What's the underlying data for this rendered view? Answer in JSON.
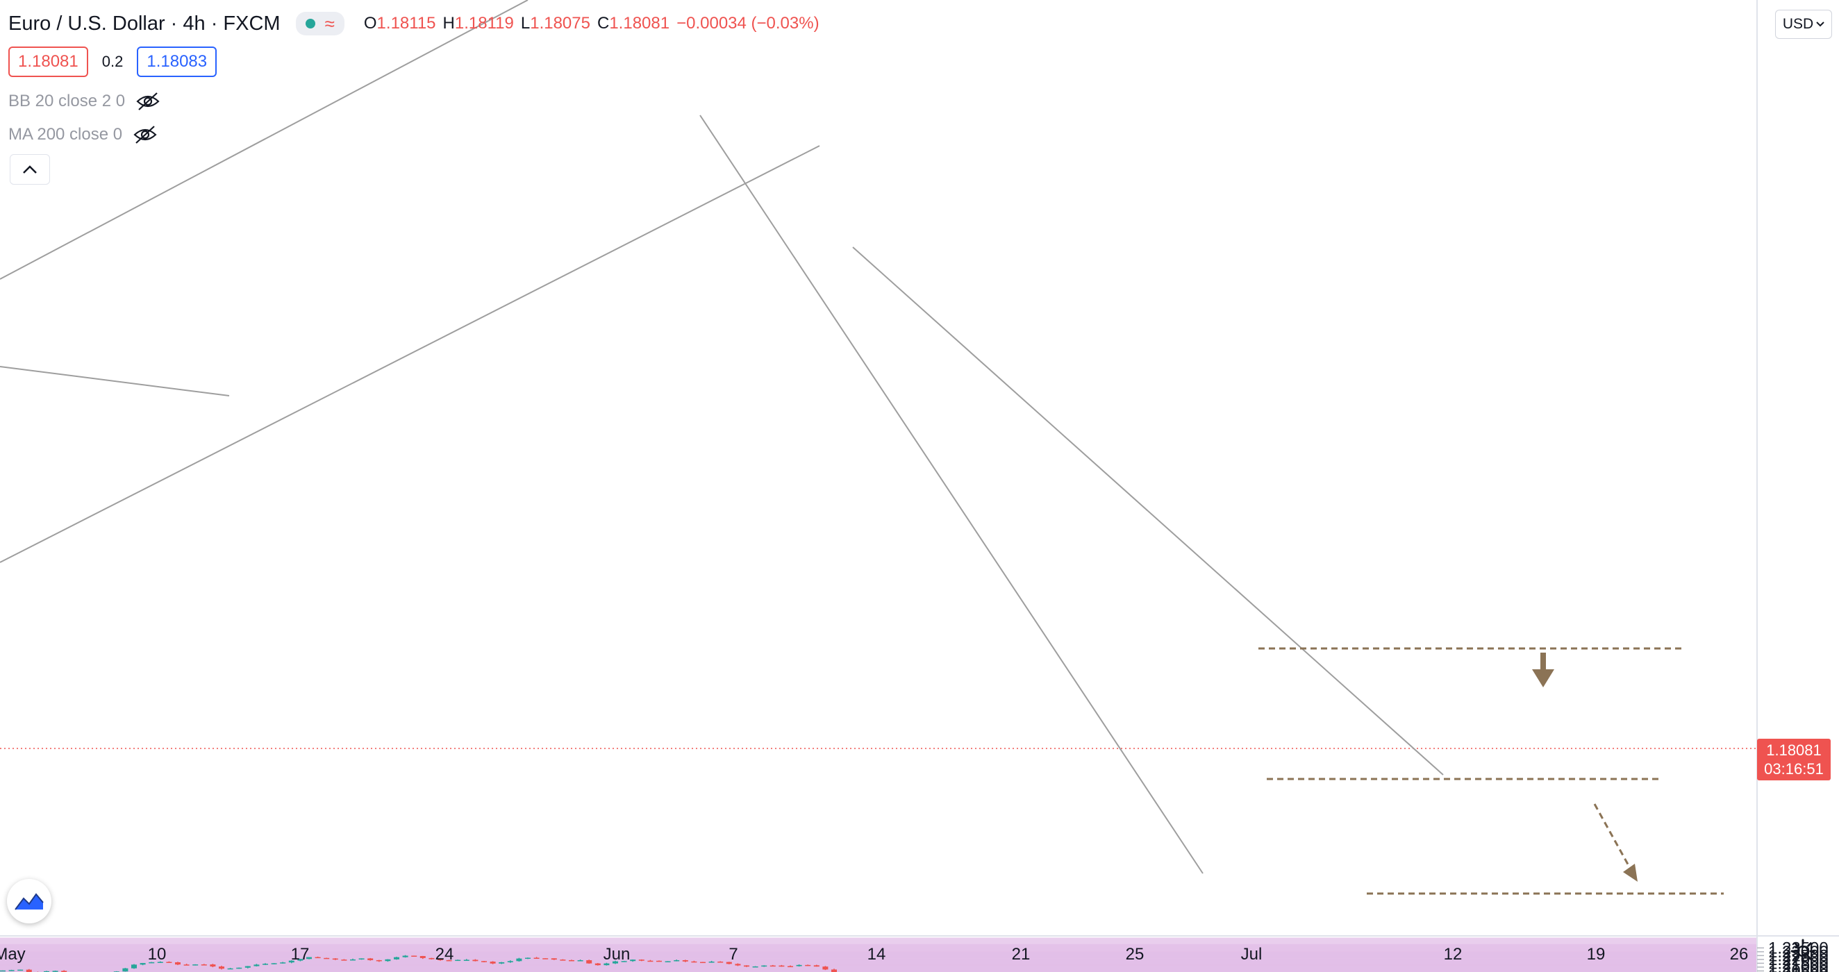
{
  "header": {
    "title": "Euro / U.S. Dollar · 4h · FXCM",
    "status": {
      "market_icon": "green-dot-icon",
      "feed_icon": "wave-icon"
    },
    "ohlc": {
      "o_label": "O",
      "o": "1.18115",
      "h_label": "H",
      "h": "1.18119",
      "l_label": "L",
      "l": "1.18075",
      "c_label": "C",
      "c": "1.18081",
      "change": "−0.00034 (−0.03%)"
    }
  },
  "trade": {
    "sell_price": "1.18081",
    "spread": "0.2",
    "buy_price": "1.18083"
  },
  "indicators": [
    {
      "label": "BB 20 close 2 0",
      "icon": "eye-hidden-icon"
    },
    {
      "label": "MA 200 close 0",
      "icon": "eye-hidden-icon"
    }
  ],
  "controls": {
    "currency": "USD",
    "collapse_icon": "chevron-up-icon",
    "settings_icon": "gear-icon",
    "logo_icon": "tradingview-logo-icon"
  },
  "current_price": {
    "value": "1.18081",
    "countdown": "03:16:51"
  },
  "colors": {
    "up": "#26a69a",
    "down": "#ef5350",
    "zone": "#e1bee7",
    "trendline": "#9e9e9e",
    "projection": "#8b7355",
    "price_line": "#ef5350"
  },
  "chart_data": {
    "type": "candlestick",
    "symbol": "EURUSD",
    "timeframe": "4h",
    "ylim": [
      1.1665,
      1.2375
    ],
    "y_ticks": [
      "1.23500",
      "1.23000",
      "1.22500",
      "1.22000",
      "1.21500",
      "1.21000",
      "1.20500",
      "1.20000",
      "1.19500",
      "1.19000",
      "1.18500",
      "1.18000",
      "1.17500",
      "1.17000"
    ],
    "x_ticks": [
      "May",
      "10",
      "17",
      "24",
      "Jun",
      "7",
      "14",
      "21",
      "25",
      "Jul",
      "12",
      "19",
      "26"
    ],
    "zones": [
      [
        1.2344,
        1.2358
      ],
      [
        1.2245,
        1.2272
      ],
      [
        1.215,
        1.2175
      ],
      [
        1.2072,
        1.2085
      ],
      [
        1.1978,
        1.2007
      ],
      [
        1.1868,
        1.1903
      ],
      [
        1.1782,
        1.1812
      ],
      [
        1.1686,
        1.1708
      ]
    ],
    "price_path": [
      [
        0,
        1.2055
      ],
      [
        1,
        1.2072
      ],
      [
        2,
        1.202
      ],
      [
        3,
        1.2055
      ],
      [
        4,
        1.2
      ],
      [
        5,
        1.1992
      ],
      [
        6,
        1.201
      ],
      [
        7,
        1.206
      ],
      [
        8,
        1.214
      ],
      [
        9,
        1.2165
      ],
      [
        10,
        1.2155
      ],
      [
        11,
        1.212
      ],
      [
        12,
        1.2145
      ],
      [
        13,
        1.2075
      ],
      [
        14,
        1.2085
      ],
      [
        15,
        1.2135
      ],
      [
        16,
        1.2155
      ],
      [
        17,
        1.2175
      ],
      [
        18,
        1.223
      ],
      [
        19,
        1.221
      ],
      [
        20,
        1.2185
      ],
      [
        21,
        1.2215
      ],
      [
        22,
        1.2175
      ],
      [
        23,
        1.2225
      ],
      [
        24,
        1.2248
      ],
      [
        25,
        1.2205
      ],
      [
        26,
        1.219
      ],
      [
        27,
        1.2195
      ],
      [
        28,
        1.2175
      ],
      [
        29,
        1.214
      ],
      [
        30,
        1.2195
      ],
      [
        31,
        1.223
      ],
      [
        32,
        1.221
      ],
      [
        33,
        1.219
      ],
      [
        34,
        1.218
      ],
      [
        35,
        1.212
      ],
      [
        36,
        1.217
      ],
      [
        37,
        1.2195
      ],
      [
        38,
        1.218
      ],
      [
        39,
        1.2185
      ],
      [
        40,
        1.218
      ],
      [
        41,
        1.2165
      ],
      [
        42,
        1.218
      ],
      [
        43,
        1.212
      ],
      [
        44,
        1.211
      ],
      [
        45,
        1.2125
      ],
      [
        46,
        1.212
      ],
      [
        47,
        1.212
      ],
      [
        48,
        1.21
      ],
      [
        49,
        1.2
      ],
      [
        50,
        1.195
      ],
      [
        51,
        1.191
      ],
      [
        52,
        1.1875
      ],
      [
        53,
        1.1865
      ],
      [
        54,
        1.1905
      ],
      [
        55,
        1.1915
      ],
      [
        56,
        1.1895
      ],
      [
        57,
        1.1945
      ],
      [
        58,
        1.1935
      ],
      [
        59,
        1.194
      ],
      [
        60,
        1.195
      ],
      [
        61,
        1.1945
      ],
      [
        62,
        1.1935
      ],
      [
        63,
        1.1915
      ],
      [
        64,
        1.19
      ],
      [
        65,
        1.1895
      ],
      [
        66,
        1.188
      ],
      [
        67,
        1.1855
      ],
      [
        68,
        1.1865
      ],
      [
        69,
        1.185
      ],
      [
        70,
        1.187
      ],
      [
        71,
        1.1862
      ],
      [
        72,
        1.1862
      ],
      [
        73,
        1.183
      ],
      [
        74,
        1.1815
      ],
      [
        75,
        1.1805
      ],
      [
        76,
        1.18
      ],
      [
        77,
        1.183
      ],
      [
        78,
        1.185
      ],
      [
        79,
        1.1845
      ],
      [
        80,
        1.1875
      ],
      [
        81,
        1.1868
      ],
      [
        82,
        1.186
      ],
      [
        83,
        1.184
      ],
      [
        84,
        1.1795
      ],
      [
        85,
        1.1782
      ],
      [
        86,
        1.181
      ],
      [
        87,
        1.1825
      ],
      [
        88,
        1.184
      ],
      [
        89,
        1.1845
      ],
      [
        90,
        1.182
      ],
      [
        91,
        1.1808
      ]
    ]
  }
}
